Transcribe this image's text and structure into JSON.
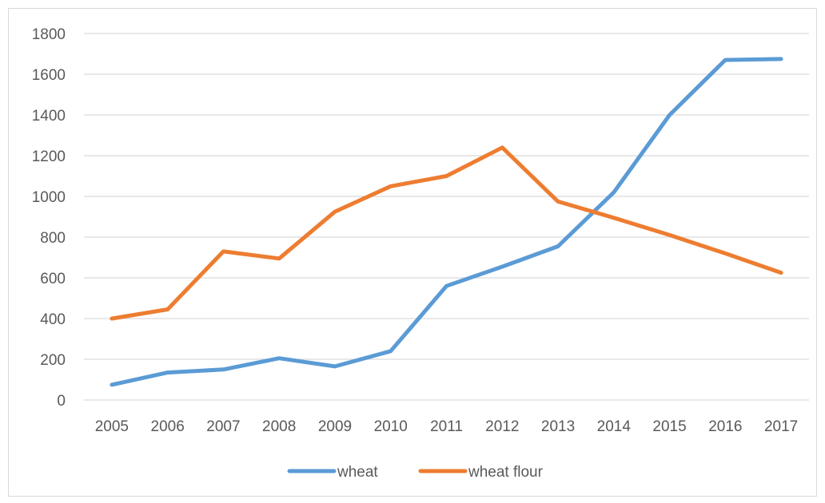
{
  "chart_data": {
    "type": "line",
    "title": "",
    "xlabel": "",
    "ylabel": "",
    "categories": [
      "2005",
      "2006",
      "2007",
      "2008",
      "2009",
      "2010",
      "2011",
      "2012",
      "2013",
      "2014",
      "2015",
      "2016",
      "2017"
    ],
    "ylim": [
      0,
      1800
    ],
    "yticks": [
      0,
      200,
      400,
      600,
      800,
      1000,
      1200,
      1400,
      1600,
      1800
    ],
    "grid": true,
    "legend_position": "bottom",
    "series": [
      {
        "name": "wheat",
        "color": "#5b9bd5",
        "values": [
          75,
          135,
          150,
          205,
          165,
          240,
          560,
          655,
          755,
          1020,
          1400,
          1670,
          1675
        ]
      },
      {
        "name": "wheat flour",
        "color": "#ed7d31",
        "values": [
          400,
          445,
          730,
          695,
          925,
          1050,
          1100,
          1240,
          975,
          895,
          810,
          720,
          625
        ]
      }
    ]
  }
}
